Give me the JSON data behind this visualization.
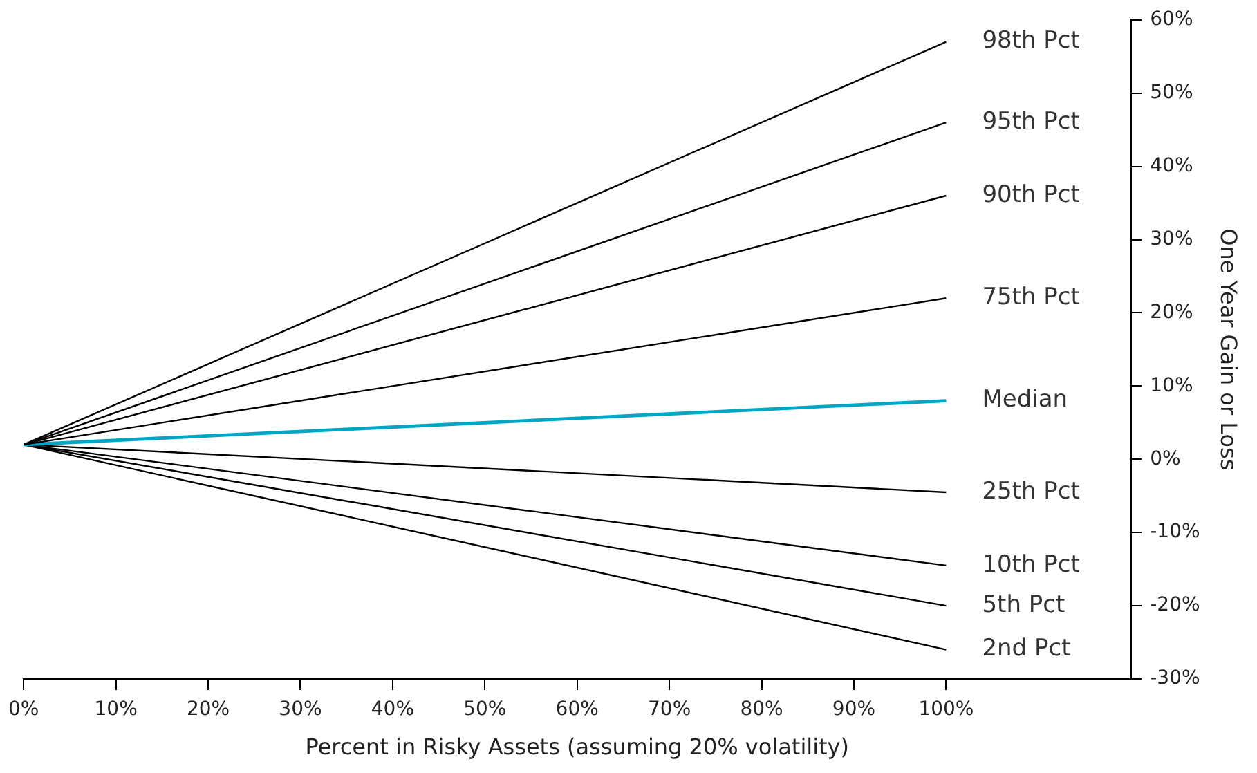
{
  "chart_data": {
    "type": "line",
    "xlabel": "Percent in Risky Assets (assuming 20% volatility)",
    "ylabel": "One Year Gain or Loss",
    "x": [
      0,
      100
    ],
    "series": [
      {
        "name": "98th Pct",
        "color": "#000000",
        "values": [
          2,
          57
        ]
      },
      {
        "name": "95th Pct",
        "color": "#000000",
        "values": [
          2,
          46
        ]
      },
      {
        "name": "90th Pct",
        "color": "#000000",
        "values": [
          2,
          36
        ]
      },
      {
        "name": "75th Pct",
        "color": "#000000",
        "values": [
          2,
          22
        ]
      },
      {
        "name": "Median",
        "color": "#00a6c4",
        "values": [
          2,
          8
        ]
      },
      {
        "name": "25th Pct",
        "color": "#000000",
        "values": [
          2,
          -4.5
        ]
      },
      {
        "name": "10th Pct",
        "color": "#000000",
        "values": [
          2,
          -14.5
        ]
      },
      {
        "name": "5th Pct",
        "color": "#000000",
        "values": [
          2,
          -20
        ]
      },
      {
        "name": "2nd Pct",
        "color": "#000000",
        "values": [
          2,
          -26
        ]
      }
    ],
    "xlim": [
      0,
      120
    ],
    "xticks": [
      {
        "value": 0,
        "label": "0%"
      },
      {
        "value": 10,
        "label": "10%"
      },
      {
        "value": 20,
        "label": "20%"
      },
      {
        "value": 30,
        "label": "30%"
      },
      {
        "value": 40,
        "label": "40%"
      },
      {
        "value": 50,
        "label": "50%"
      },
      {
        "value": 60,
        "label": "60%"
      },
      {
        "value": 70,
        "label": "70%"
      },
      {
        "value": 80,
        "label": "80%"
      },
      {
        "value": 90,
        "label": "90%"
      },
      {
        "value": 100,
        "label": "100%"
      }
    ],
    "ylim": [
      -30,
      60
    ],
    "yticks": [
      {
        "value": -30,
        "label": "-30%"
      },
      {
        "value": -20,
        "label": "-20%"
      },
      {
        "value": -10,
        "label": "-10%"
      },
      {
        "value": 0,
        "label": "0%"
      },
      {
        "value": 10,
        "label": "10%"
      },
      {
        "value": 20,
        "label": "20%"
      },
      {
        "value": 30,
        "label": "30%"
      },
      {
        "value": 40,
        "label": "40%"
      },
      {
        "value": 50,
        "label": "50%"
      },
      {
        "value": 60,
        "label": "60%"
      }
    ],
    "grid": false,
    "legend": false,
    "marker": "none",
    "line_style": "solid"
  }
}
